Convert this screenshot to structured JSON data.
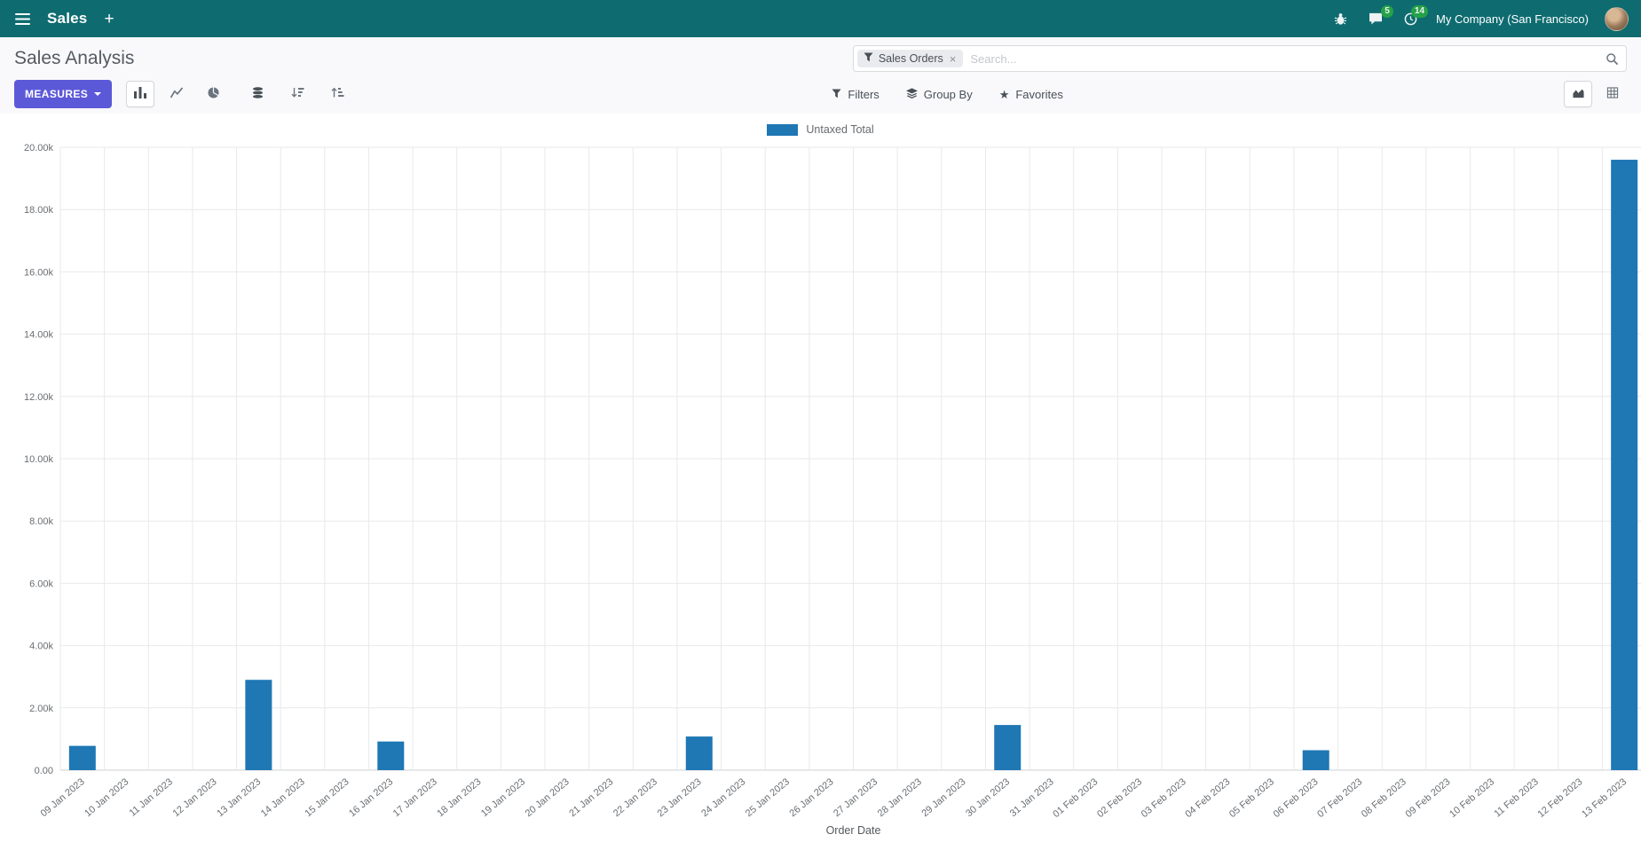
{
  "navbar": {
    "app_name": "Sales",
    "plus_label": "+",
    "company": "My Company (San Francisco)",
    "badges": {
      "messages": "5",
      "activities": "14"
    }
  },
  "control_panel": {
    "title": "Sales Analysis",
    "measures_label": "MEASURES",
    "search": {
      "facet_label": "Sales Orders",
      "remove": "×",
      "placeholder": "Search..."
    },
    "filters_label": "Filters",
    "group_by_label": "Group By",
    "favorites_label": "Favorites",
    "favorites_star": "★"
  },
  "colors": {
    "navbar_bg": "#0e6c70",
    "primary_button": "#5c59d8",
    "badge_green": "#28a745",
    "bar_blue": "#1f77b4"
  },
  "chart_data": {
    "type": "bar",
    "title": "",
    "xlabel": "Order Date",
    "ylabel": "",
    "ylim": [
      0,
      20000
    ],
    "y_tick_step": 2000,
    "y_tick_labels": [
      "0.00",
      "2.00k",
      "4.00k",
      "6.00k",
      "8.00k",
      "10.00k",
      "12.00k",
      "14.00k",
      "16.00k",
      "18.00k",
      "20.00k"
    ],
    "grid": true,
    "legend_position": "top",
    "categories": [
      "09 Jan 2023",
      "10 Jan 2023",
      "11 Jan 2023",
      "12 Jan 2023",
      "13 Jan 2023",
      "14 Jan 2023",
      "15 Jan 2023",
      "16 Jan 2023",
      "17 Jan 2023",
      "18 Jan 2023",
      "19 Jan 2023",
      "20 Jan 2023",
      "21 Jan 2023",
      "22 Jan 2023",
      "23 Jan 2023",
      "24 Jan 2023",
      "25 Jan 2023",
      "26 Jan 2023",
      "27 Jan 2023",
      "28 Jan 2023",
      "29 Jan 2023",
      "30 Jan 2023",
      "31 Jan 2023",
      "01 Feb 2023",
      "02 Feb 2023",
      "03 Feb 2023",
      "04 Feb 2023",
      "05 Feb 2023",
      "06 Feb 2023",
      "07 Feb 2023",
      "08 Feb 2023",
      "09 Feb 2023",
      "10 Feb 2023",
      "11 Feb 2023",
      "12 Feb 2023",
      "13 Feb 2023"
    ],
    "series": [
      {
        "name": "Untaxed Total",
        "color": "#1f77b4",
        "values": [
          780,
          0,
          0,
          0,
          2900,
          0,
          0,
          920,
          0,
          0,
          0,
          0,
          0,
          0,
          1080,
          0,
          0,
          0,
          0,
          0,
          0,
          1450,
          0,
          0,
          0,
          0,
          0,
          0,
          640,
          0,
          0,
          0,
          0,
          0,
          0,
          19600
        ]
      }
    ]
  }
}
